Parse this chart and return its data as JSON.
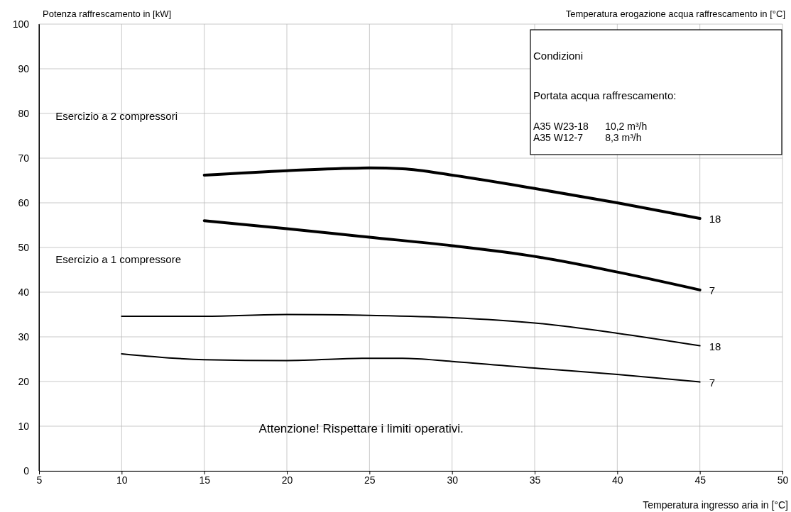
{
  "chart_data": {
    "type": "line",
    "ylabel": "Potenza raffrescamento in [kW]",
    "y2label": "Temperatura erogazione acqua raffrescamento in [°C]",
    "xlabel": "Temperatura ingresso aria in [°C]",
    "xlim": [
      5,
      50
    ],
    "xticks": [
      5,
      10,
      15,
      20,
      25,
      30,
      35,
      40,
      45,
      50
    ],
    "ylim": [
      0,
      100
    ],
    "yticks": [
      0,
      10,
      20,
      30,
      40,
      50,
      60,
      70,
      80,
      90,
      100
    ],
    "grid": true,
    "marker": "none",
    "line_style": "solid",
    "series": [
      {
        "name": "18",
        "color": "#000000",
        "x": [
          15,
          20,
          25,
          27,
          30,
          35,
          40,
          45
        ],
        "values": [
          66.2,
          67.2,
          67.8,
          67.6,
          66.2,
          63.2,
          60,
          56.5
        ]
      },
      {
        "name": "7",
        "color": "#000000",
        "x": [
          15,
          20,
          25,
          30,
          35,
          40,
          45
        ],
        "values": [
          56,
          54.2,
          52.3,
          50.4,
          48,
          44.5,
          40.5
        ]
      },
      {
        "name": "18",
        "color": "#000000",
        "x": [
          10,
          15,
          20,
          25,
          30,
          35,
          40,
          45
        ],
        "values": [
          34.6,
          34.6,
          35,
          34.8,
          34.3,
          33.1,
          30.8,
          28
        ]
      },
      {
        "name": "7",
        "color": "#000000",
        "x": [
          10,
          15,
          20,
          25,
          27,
          30,
          35,
          40,
          45
        ],
        "values": [
          26.2,
          24.9,
          24.7,
          25.2,
          25.2,
          24.5,
          23,
          21.6,
          19.9
        ]
      }
    ],
    "annotations": [
      "Esercizio a 2 compressori",
      "Esercizio a 1 compressore",
      "Attenzione! Rispettare i limiti operativi.",
      "Condizioni",
      "Portata acqua raffrescamento:",
      "A35 W23-18      10,2 m³/h",
      "A35 W12-7        8,3 m³/h"
    ]
  }
}
